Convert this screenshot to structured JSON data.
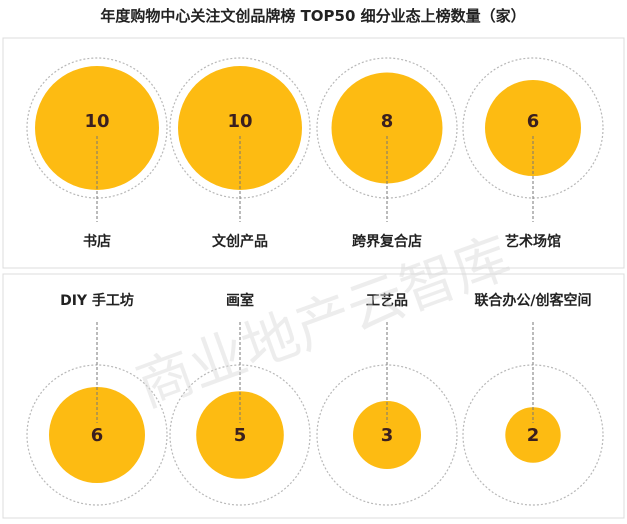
{
  "chart_data": {
    "type": "bubble",
    "title": "年度购物中心关注文创品牌榜 TOP50 细分业态上榜数量（家）",
    "categories": [
      "书店",
      "文创产品",
      "跨界复合店",
      "艺术场馆",
      "DIY 手工坊",
      "画室",
      "工艺品",
      "联合办公/创客空间"
    ],
    "values": [
      10,
      10,
      8,
      6,
      6,
      5,
      3,
      2
    ],
    "max_value": 10
  },
  "watermark": "商业地产云智库",
  "colors": {
    "bubble_fill": "#FDBB12",
    "outer_ring_fill": "#ffffff",
    "outer_ring_stroke": "#b8b8b8",
    "value_text": "#3a1f1f",
    "label_text": "#222222",
    "leader_line": "#777777",
    "divider": "#dcdcdc"
  }
}
